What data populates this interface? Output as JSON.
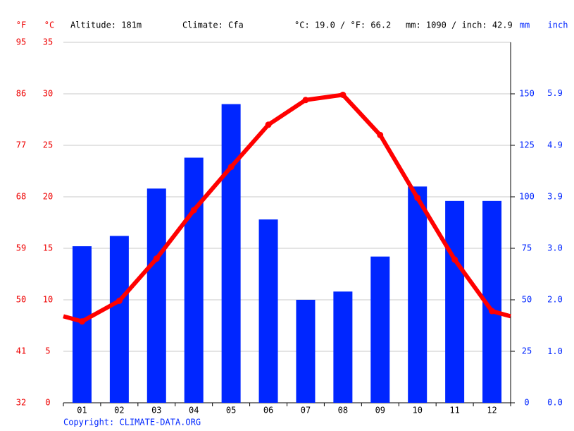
{
  "header": {
    "unit_f": "°F",
    "unit_c": "°C",
    "altitude": "Altitude: 181m",
    "climate": "Climate: Cfa",
    "mean_temp": "°C: 19.0 / °F: 66.2",
    "total_precip": "mm: 1090 / inch: 42.9",
    "unit_mm": "mm",
    "unit_inch": "inch"
  },
  "chart_data": {
    "type": "combo",
    "categories": [
      "01",
      "02",
      "03",
      "04",
      "05",
      "06",
      "07",
      "08",
      "09",
      "10",
      "11",
      "12"
    ],
    "series": [
      {
        "type": "bar",
        "axis": "y2",
        "color": "#0026ff",
        "values": [
          76,
          81,
          104,
          119,
          145,
          89,
          50,
          54,
          71,
          105,
          98,
          98
        ]
      },
      {
        "type": "line",
        "axis": "y",
        "color": "#ff0000",
        "values": [
          7.9,
          9.9,
          14.0,
          18.7,
          22.9,
          27.0,
          29.4,
          29.9,
          26.0,
          19.9,
          13.9,
          8.9
        ]
      }
    ],
    "ylim": [
      0,
      35
    ],
    "yticks": [
      0,
      5,
      10,
      15,
      20,
      25,
      30,
      35
    ],
    "yticks_f": [
      32,
      41,
      50,
      59,
      68,
      77,
      86,
      95
    ],
    "y2lim": [
      0,
      175
    ],
    "y2ticks": [
      0,
      25,
      50,
      75,
      100,
      125,
      150
    ],
    "y2ticks_inch": [
      {
        "value": 0,
        "label": "0.0"
      },
      {
        "value": 0.98,
        "label": "1.0"
      },
      {
        "value": 1.97,
        "label": "2.0"
      },
      {
        "value": 2.95,
        "label": "3.0"
      },
      {
        "value": 3.94,
        "label": "3.9"
      },
      {
        "value": 4.92,
        "label": "4.9"
      },
      {
        "value": 5.91,
        "label": "5.9"
      }
    ],
    "grid": true,
    "copyright": "Copyright: CLIMATE-DATA.ORG"
  }
}
